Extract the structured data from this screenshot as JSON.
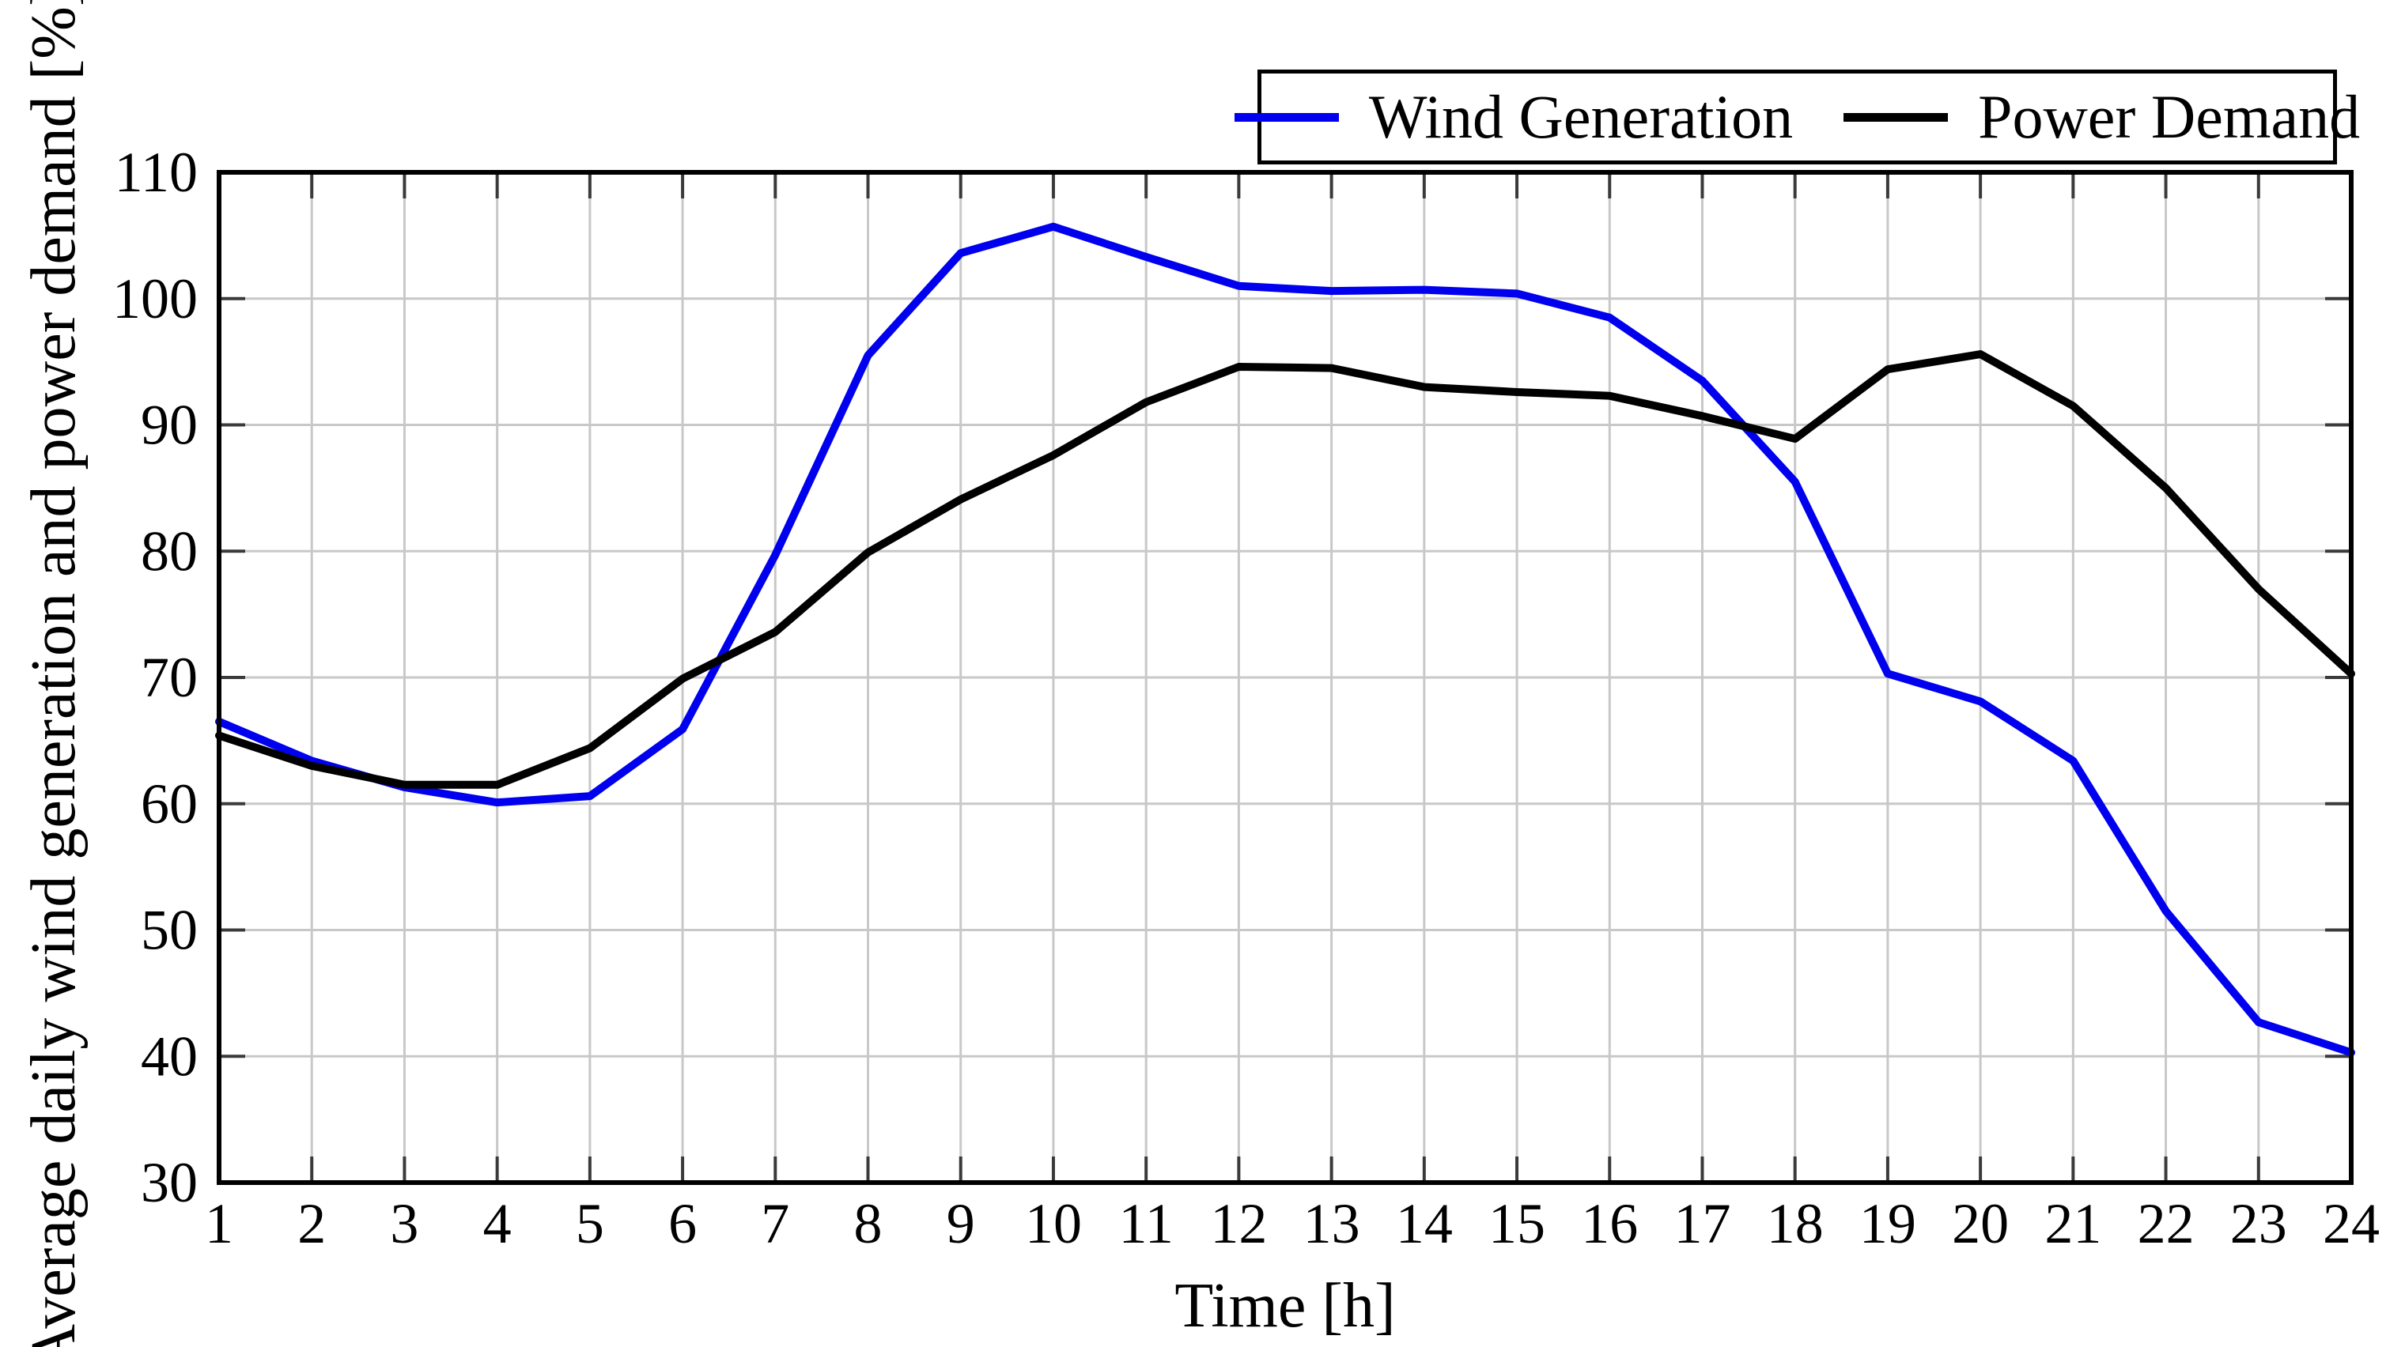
{
  "chart_data": {
    "type": "line",
    "title": "",
    "xlabel": "Time [h]",
    "ylabel": "Average daily wind generation and power demand [%]",
    "xlim": [
      1,
      24
    ],
    "ylim": [
      30,
      110
    ],
    "x_ticks": [
      1,
      2,
      3,
      4,
      5,
      6,
      7,
      8,
      9,
      10,
      11,
      12,
      13,
      14,
      15,
      16,
      17,
      18,
      19,
      20,
      21,
      22,
      23,
      24
    ],
    "y_ticks": [
      30,
      40,
      50,
      60,
      70,
      80,
      90,
      100,
      110
    ],
    "grid": true,
    "grid_color": "#C8C8C8",
    "tick_color": "#3A3A3A",
    "spine_color": "#000000",
    "background_color": "#FFFFFF",
    "legend_position": "top-right",
    "x": [
      1,
      2,
      3,
      4,
      5,
      6,
      7,
      8,
      9,
      10,
      11,
      12,
      13,
      14,
      15,
      16,
      17,
      18,
      19,
      20,
      21,
      22,
      23,
      24
    ],
    "series": [
      {
        "name": "Wind Generation",
        "color": "#0000EE",
        "values": [
          66.5,
          63.4,
          61.3,
          60.1,
          60.6,
          65.9,
          79.7,
          95.5,
          103.6,
          105.7,
          103.3,
          101.0,
          100.6,
          100.7,
          100.4,
          98.5,
          93.5,
          85.5,
          70.3,
          68.1,
          63.4,
          51.5,
          42.7,
          40.3
        ]
      },
      {
        "name": "Power Demand",
        "color": "#000000",
        "values": [
          65.4,
          63.0,
          61.5,
          61.5,
          64.4,
          69.9,
          73.6,
          79.9,
          84.1,
          87.6,
          91.8,
          94.6,
          94.5,
          93.0,
          92.6,
          92.3,
          90.7,
          88.9,
          94.4,
          95.6,
          91.5,
          85.0,
          77.0,
          70.3
        ]
      }
    ]
  }
}
